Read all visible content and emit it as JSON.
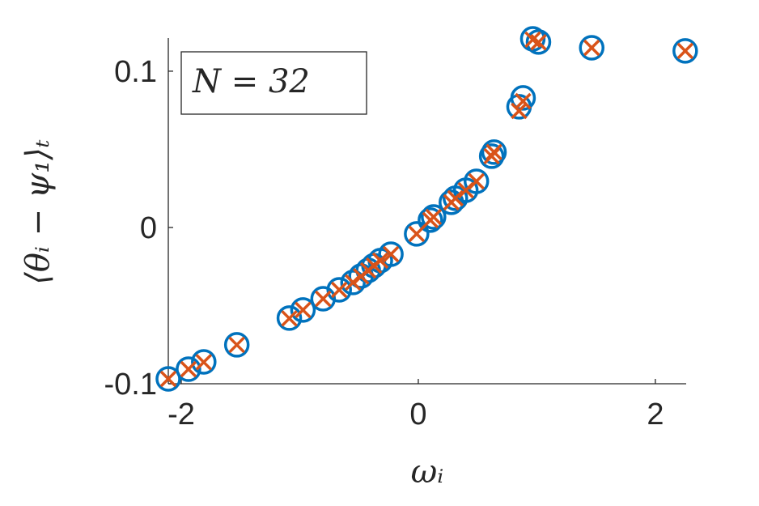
{
  "chart_data": {
    "type": "scatter",
    "xlabel": "ωᵢ",
    "ylabel": "⟨θᵢ − ψ₁⟩ₜ",
    "annotation": "N = 32",
    "x": [
      -2.109,
      -1.939,
      -1.81,
      -1.531,
      -1.088,
      -0.973,
      -0.803,
      -0.667,
      -0.551,
      -0.483,
      -0.422,
      -0.374,
      -0.32,
      -0.231,
      -0.014,
      0.102,
      0.129,
      0.279,
      0.313,
      0.401,
      0.49,
      0.619,
      0.639,
      0.85,
      0.884,
      0.966,
      1.014,
      1.463,
      2.252
    ],
    "series": [
      {
        "color": "#0072BD",
        "marker": "o",
        "values": [
          -0.0969,
          -0.0907,
          -0.086,
          -0.0751,
          -0.058,
          -0.0528,
          -0.0456,
          -0.0399,
          -0.0352,
          -0.0311,
          -0.0275,
          -0.0244,
          -0.0212,
          -0.0171,
          -0.0041,
          0.0047,
          0.0067,
          0.0161,
          0.0187,
          0.0238,
          0.0295,
          0.0456,
          0.0482,
          0.0772,
          0.0829,
          0.1207,
          0.1187,
          0.115,
          0.113
        ]
      },
      {
        "color": "#D95319",
        "marker": "x",
        "values": [
          -0.0969,
          -0.0907,
          -0.0862,
          -0.0751,
          -0.0582,
          -0.0528,
          -0.0456,
          -0.0399,
          -0.0352,
          -0.0313,
          -0.0275,
          -0.0244,
          -0.0212,
          -0.0171,
          -0.0041,
          0.0047,
          0.0067,
          0.0161,
          0.0187,
          0.0238,
          0.0295,
          0.0456,
          0.0482,
          0.0746,
          0.0808,
          0.1202,
          0.1185,
          0.115,
          0.113
        ]
      }
    ],
    "xlim": [
      -2.109,
      2.26
    ],
    "ylim": [
      -0.1,
      0.1212
    ],
    "xticks": [
      -2,
      0,
      2
    ],
    "yticks": [
      -0.1,
      0,
      0.1
    ]
  }
}
